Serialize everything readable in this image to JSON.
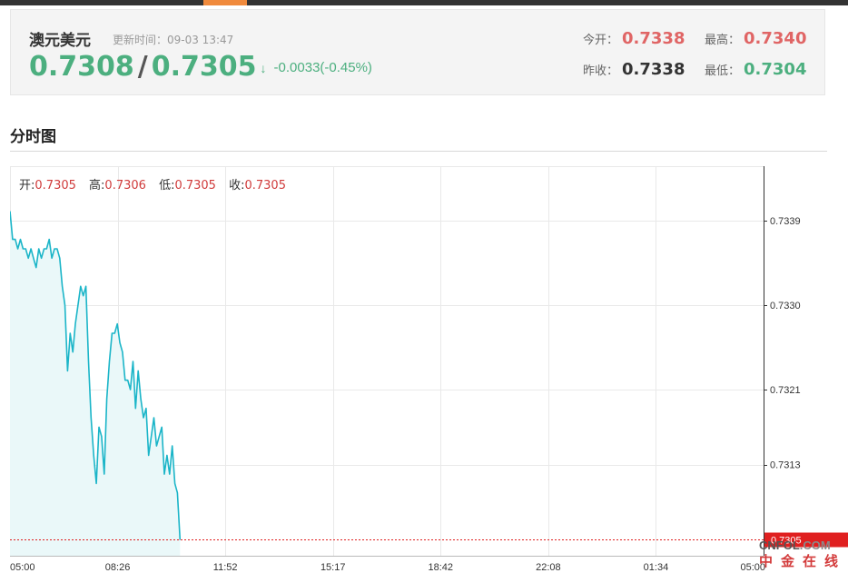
{
  "quote": {
    "name": "澳元美元",
    "update_label": "更新时间：09-03 13:47",
    "bid": "0.7308",
    "separator": "/",
    "ask": "0.7305",
    "arrow": "↓",
    "change": "-0.0033(-0.45%)",
    "open_label": "今开：",
    "open": "0.7338",
    "high_label": "最高：",
    "high": "0.7340",
    "prev_close_label": "昨收：",
    "prev_close": "0.7338",
    "low_label": "最低：",
    "low": "0.7304"
  },
  "section": {
    "title": "分时图"
  },
  "ohlc_bar": {
    "open_label": "开:",
    "open": "0.7305",
    "high_label": "高:",
    "high": "0.7306",
    "low_label": "低:",
    "low": "0.7305",
    "close_label": "收:",
    "close": "0.7305"
  },
  "logo": {
    "top_a": "CNFOL",
    "top_b": ".COM",
    "bottom": "中金在线"
  },
  "colors": {
    "line": "#1bb5c8",
    "fill": "#eaf8f9",
    "current_tag": "#e02020",
    "grid": "#e9e9e9"
  },
  "chart_data": {
    "type": "area",
    "x_ticks": [
      "05:00",
      "08:26",
      "11:52",
      "15:17",
      "18:42",
      "22:08",
      "01:34",
      "05:00"
    ],
    "y_ticks": [
      "0.7339",
      "0.7330",
      "0.7321",
      "0.7313"
    ],
    "current_tag": "0.7305",
    "current_value": 0.7305,
    "ylim": [
      0.73033,
      0.73448
    ],
    "session_minutes": 1440,
    "minutes_per_point": 5,
    "series": [
      {
        "values": [
          0.734,
          0.7337,
          0.7337,
          0.7336,
          0.7337,
          0.7336,
          0.7336,
          0.7335,
          0.7336,
          0.7335,
          0.7334,
          0.7336,
          0.7335,
          0.7336,
          0.7336,
          0.7337,
          0.7335,
          0.7336,
          0.7336,
          0.7335,
          0.7332,
          0.733,
          0.7323,
          0.7327,
          0.7325,
          0.7328,
          0.733,
          0.7332,
          0.7331,
          0.7332,
          0.7324,
          0.7318,
          0.7314,
          0.7311,
          0.7317,
          0.7316,
          0.7312,
          0.732,
          0.7324,
          0.7327,
          0.7327,
          0.7328,
          0.7326,
          0.7325,
          0.7322,
          0.7322,
          0.7321,
          0.7324,
          0.7319,
          0.7323,
          0.732,
          0.7318,
          0.7319,
          0.7314,
          0.7316,
          0.7318,
          0.7315,
          0.7316,
          0.7317,
          0.7312,
          0.7314,
          0.7312,
          0.7315,
          0.7311,
          0.731,
          0.7305
        ]
      }
    ]
  }
}
